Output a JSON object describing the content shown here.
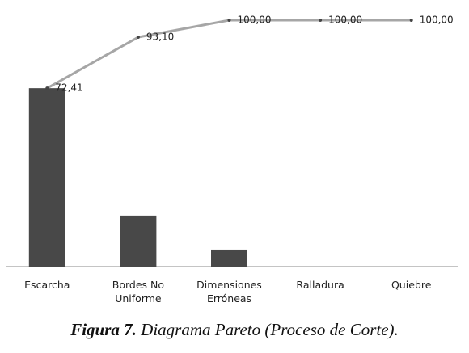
{
  "chart_data": {
    "type": "pareto",
    "categories": [
      "Escarcha",
      "Bordes No Uniforme",
      "Dimensiones Erróneas",
      "Ralladura",
      "Quiebre"
    ],
    "series": [
      {
        "type": "bar",
        "color": "#484848",
        "values": [
          72.41,
          20.69,
          6.9,
          0,
          0
        ]
      },
      {
        "type": "line",
        "color": "#a6a6a6",
        "values": [
          72.41,
          93.1,
          100,
          100,
          100
        ],
        "value_labels": [
          "72,41",
          "93,10",
          "100,00",
          "100,00",
          "100,00"
        ]
      }
    ],
    "ylim": [
      0,
      100
    ],
    "caption_label": "Figura 7.",
    "caption": "Diagrama Pareto (Proceso de Corte)."
  }
}
